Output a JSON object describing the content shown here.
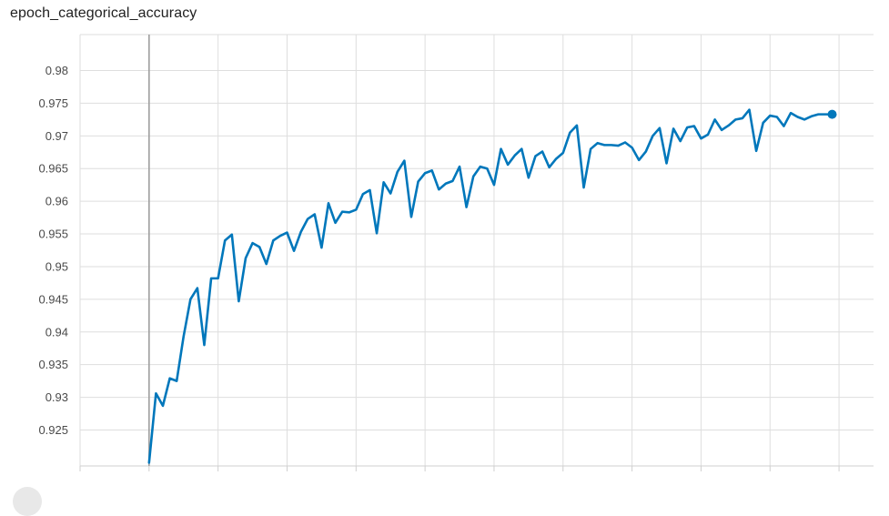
{
  "chart_data": {
    "type": "line",
    "title": "epoch_categorical_accuracy",
    "xlabel": "",
    "ylabel": "",
    "xlim": [
      -10,
      105
    ],
    "ylim": [
      0.9195,
      0.9855
    ],
    "y_ticks": [
      0.925,
      0.93,
      0.935,
      0.94,
      0.945,
      0.95,
      0.955,
      0.96,
      0.965,
      0.97,
      0.975,
      0.98
    ],
    "y_tick_labels": [
      "0.925",
      "0.93",
      "0.935",
      "0.94",
      "0.945",
      "0.95",
      "0.955",
      "0.96",
      "0.965",
      "0.97",
      "0.975",
      "0.98"
    ],
    "x_gridlines": [
      0,
      10,
      20,
      30,
      40,
      50,
      60,
      70,
      80,
      90,
      100
    ],
    "reference_x": 0,
    "series": [
      {
        "name": "epoch_categorical_accuracy",
        "color": "#0077bb",
        "x": [
          0,
          1,
          2,
          3,
          4,
          5,
          6,
          7,
          8,
          9,
          10,
          11,
          12,
          13,
          14,
          15,
          16,
          17,
          18,
          19,
          20,
          21,
          22,
          23,
          24,
          25,
          26,
          27,
          28,
          29,
          30,
          31,
          32,
          33,
          34,
          35,
          36,
          37,
          38,
          39,
          40,
          41,
          42,
          43,
          44,
          45,
          46,
          47,
          48,
          49,
          50,
          51,
          52,
          53,
          54,
          55,
          56,
          57,
          58,
          59,
          60,
          61,
          62,
          63,
          64,
          65,
          66,
          67,
          68,
          69,
          70,
          71,
          72,
          73,
          74,
          75,
          76,
          77,
          78,
          79,
          80,
          81,
          82,
          83,
          84,
          85,
          86,
          87,
          88,
          89,
          90,
          91,
          92,
          93,
          94,
          95,
          96,
          97,
          98,
          99
        ],
        "values": [
          0.92,
          0.9306,
          0.9287,
          0.9329,
          0.9325,
          0.9393,
          0.945,
          0.9467,
          0.938,
          0.9482,
          0.9482,
          0.954,
          0.9549,
          0.9447,
          0.9513,
          0.9536,
          0.953,
          0.9504,
          0.954,
          0.9547,
          0.9552,
          0.9524,
          0.9553,
          0.9573,
          0.958,
          0.9529,
          0.9597,
          0.9567,
          0.9584,
          0.9583,
          0.9587,
          0.9611,
          0.9617,
          0.9551,
          0.9629,
          0.9612,
          0.9645,
          0.9662,
          0.9576,
          0.963,
          0.9643,
          0.9647,
          0.9618,
          0.9627,
          0.9631,
          0.9653,
          0.9591,
          0.9638,
          0.9653,
          0.965,
          0.9625,
          0.968,
          0.9656,
          0.967,
          0.968,
          0.9636,
          0.9669,
          0.9676,
          0.9652,
          0.9665,
          0.9674,
          0.9705,
          0.9716,
          0.9621,
          0.968,
          0.9689,
          0.9686,
          0.9686,
          0.9685,
          0.969,
          0.9682,
          0.9663,
          0.9676,
          0.97,
          0.9712,
          0.9658,
          0.9711,
          0.9692,
          0.9713,
          0.9715,
          0.9696,
          0.9702,
          0.9725,
          0.9709,
          0.9716,
          0.9725,
          0.9727,
          0.974,
          0.9677,
          0.972,
          0.9731,
          0.9729,
          0.9715,
          0.9735,
          0.9729,
          0.9725,
          0.973,
          0.9733,
          0.9733,
          0.9733
        ]
      }
    ],
    "last_point": {
      "x": 99,
      "value": 0.9733
    }
  }
}
